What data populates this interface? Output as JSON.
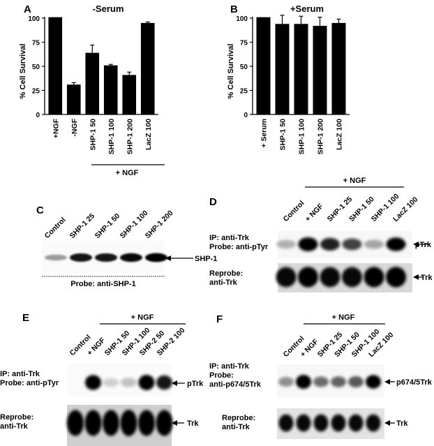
{
  "panel_letters": [
    "A",
    "B",
    "C",
    "D",
    "E",
    "F"
  ],
  "chart_data": [
    {
      "type": "bar",
      "panel": "A",
      "title": "-Serum",
      "xlabel": "",
      "ylabel": "% Cell Survival",
      "ylim": [
        0,
        100
      ],
      "yticks": [
        0,
        25,
        50,
        75,
        100
      ],
      "categories": [
        "+NGF",
        "-NGF",
        "SHP-1 50",
        "SHP-1 100",
        "SHP-1 200",
        "LacZ 100"
      ],
      "values": [
        101,
        31,
        64,
        51,
        41,
        95
      ],
      "errors": [
        0,
        2,
        8,
        1,
        3,
        1
      ],
      "group_label": "+ NGF",
      "grid": false,
      "legend": "none"
    },
    {
      "type": "bar",
      "panel": "B",
      "title": "+Serum",
      "xlabel": "",
      "ylabel": "% Cell Survival",
      "ylim": [
        0,
        100
      ],
      "yticks": [
        0,
        25,
        50,
        75,
        100
      ],
      "categories": [
        "+ Serum",
        "SHP-1 50",
        "SHP-1 100",
        "SHP-1 200",
        "LacZ 100"
      ],
      "values": [
        101,
        94,
        94,
        92,
        95
      ],
      "errors": [
        0,
        9,
        8,
        9,
        4
      ],
      "grid": false,
      "legend": "none"
    }
  ],
  "blots": {
    "C": {
      "lanes": [
        "Control",
        "SHP-1 25",
        "SHP-1 50",
        "SHP-1 100",
        "SHP-1 200"
      ],
      "band_label": "SHP-1",
      "probe_label": "Probe: anti-SHP-1",
      "intensity": [
        0.25,
        0.85,
        0.85,
        0.9,
        0.95
      ]
    },
    "D": {
      "lanes": [
        "Control",
        "+ NGF",
        "SHP-1 25",
        "SHP-1 50",
        "SHP-1 100",
        "LacZ 100"
      ],
      "group_label": "+ NGF",
      "ip_line1": "IP: anti-Trk",
      "ip_line2": "Probe: anti-pTyr",
      "band_label": "pTrk",
      "reprobe_line1": "Reprobe:",
      "reprobe_line2": "anti-Trk",
      "reprobe_band_label": "Trk",
      "intensity": [
        0.15,
        1.0,
        0.8,
        0.65,
        0.2,
        0.95
      ],
      "reprobe_intensity": [
        0.9,
        0.95,
        0.9,
        0.9,
        0.95,
        0.95
      ]
    },
    "E": {
      "lanes": [
        "Control",
        "+ NGF",
        "SHP-1 50",
        "SHP-1 100",
        "SHP-2 50",
        "SHP-2 100"
      ],
      "group_label": "+ NGF",
      "ip_line1": "IP: anti-Trk",
      "ip_line2": "Probe: anti-pTyr",
      "band_label": "pTrk",
      "reprobe_line1": "Reprobe:",
      "reprobe_line2": "anti-Trk",
      "reprobe_band_label": "Trk",
      "intensity": [
        0.0,
        0.95,
        0.02,
        0.08,
        1.0,
        0.85
      ],
      "reprobe_intensity": [
        0.95,
        0.95,
        0.95,
        1.0,
        0.95,
        0.95
      ]
    },
    "F": {
      "lanes": [
        "Control",
        "+ NGF",
        "SHP-1 25",
        "SHP-1 50",
        "SHP-1 100",
        "LacZ 100"
      ],
      "group_label": "+ NGF",
      "ip_line1": "IP: anti-Trk",
      "ip_line2": "Probe:",
      "ip_line3": "anti-p674/5Trk",
      "band_label": "p674/5Trk",
      "reprobe_line1": "Reprobe:",
      "reprobe_line2": "anti-Trk",
      "reprobe_band_label": "Trk",
      "intensity": [
        0.3,
        1.0,
        0.45,
        0.5,
        0.55,
        0.95
      ],
      "reprobe_intensity": [
        0.9,
        0.9,
        0.9,
        0.9,
        0.9,
        0.9
      ]
    }
  }
}
